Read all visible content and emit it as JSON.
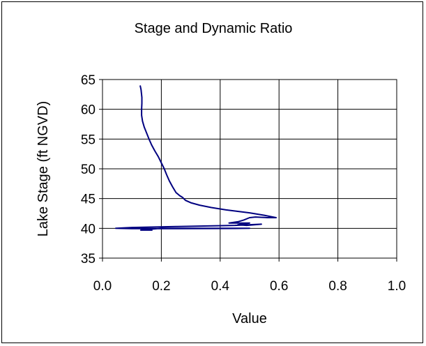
{
  "chart_data": {
    "type": "line",
    "title": "Stage and Dynamic Ratio",
    "xlabel": "Value",
    "ylabel": "Lake Stage (ft NGVD)",
    "xlim": [
      0.0,
      1.0
    ],
    "ylim": [
      35,
      65
    ],
    "xticks": [
      "0.0",
      "0.2",
      "0.4",
      "0.6",
      "0.8",
      "1.0"
    ],
    "yticks": [
      "35",
      "40",
      "45",
      "50",
      "55",
      "60",
      "65"
    ],
    "grid": true,
    "legend": "none",
    "colors": {
      "series": "#000080",
      "grid": "#000000"
    },
    "series": [
      {
        "x": [
          0.128,
          0.131,
          0.134,
          0.134,
          0.133,
          0.133,
          0.136,
          0.142,
          0.15,
          0.158,
          0.167,
          0.178,
          0.19,
          0.2,
          0.21,
          0.218,
          0.227,
          0.238,
          0.25,
          0.262,
          0.272,
          0.276,
          0.282,
          0.3,
          0.33,
          0.37,
          0.42,
          0.5,
          0.55,
          0.59,
          0.56,
          0.52,
          0.5,
          0.48,
          0.46,
          0.43,
          0.5,
          0.46,
          0.49,
          0.54,
          0.45,
          0.25,
          0.1,
          0.045,
          0.1,
          0.25,
          0.45,
          0.5,
          0.45,
          0.2,
          0.13,
          0.17
        ],
        "y": [
          64.0,
          63.3,
          62.0,
          61.0,
          60.0,
          59.0,
          58.0,
          57.0,
          56.0,
          55.0,
          54.0,
          53.0,
          52.0,
          51.0,
          50.0,
          49.0,
          48.0,
          47.0,
          46.0,
          45.5,
          45.2,
          45.0,
          44.7,
          44.3,
          43.9,
          43.5,
          43.1,
          42.6,
          42.2,
          41.8,
          41.8,
          41.9,
          41.8,
          41.4,
          41.1,
          40.9,
          40.9,
          40.6,
          40.5,
          40.7,
          40.5,
          40.3,
          40.15,
          40.0,
          39.95,
          39.95,
          39.98,
          40.0,
          40.0,
          40.0,
          39.7,
          39.7
        ]
      }
    ]
  }
}
